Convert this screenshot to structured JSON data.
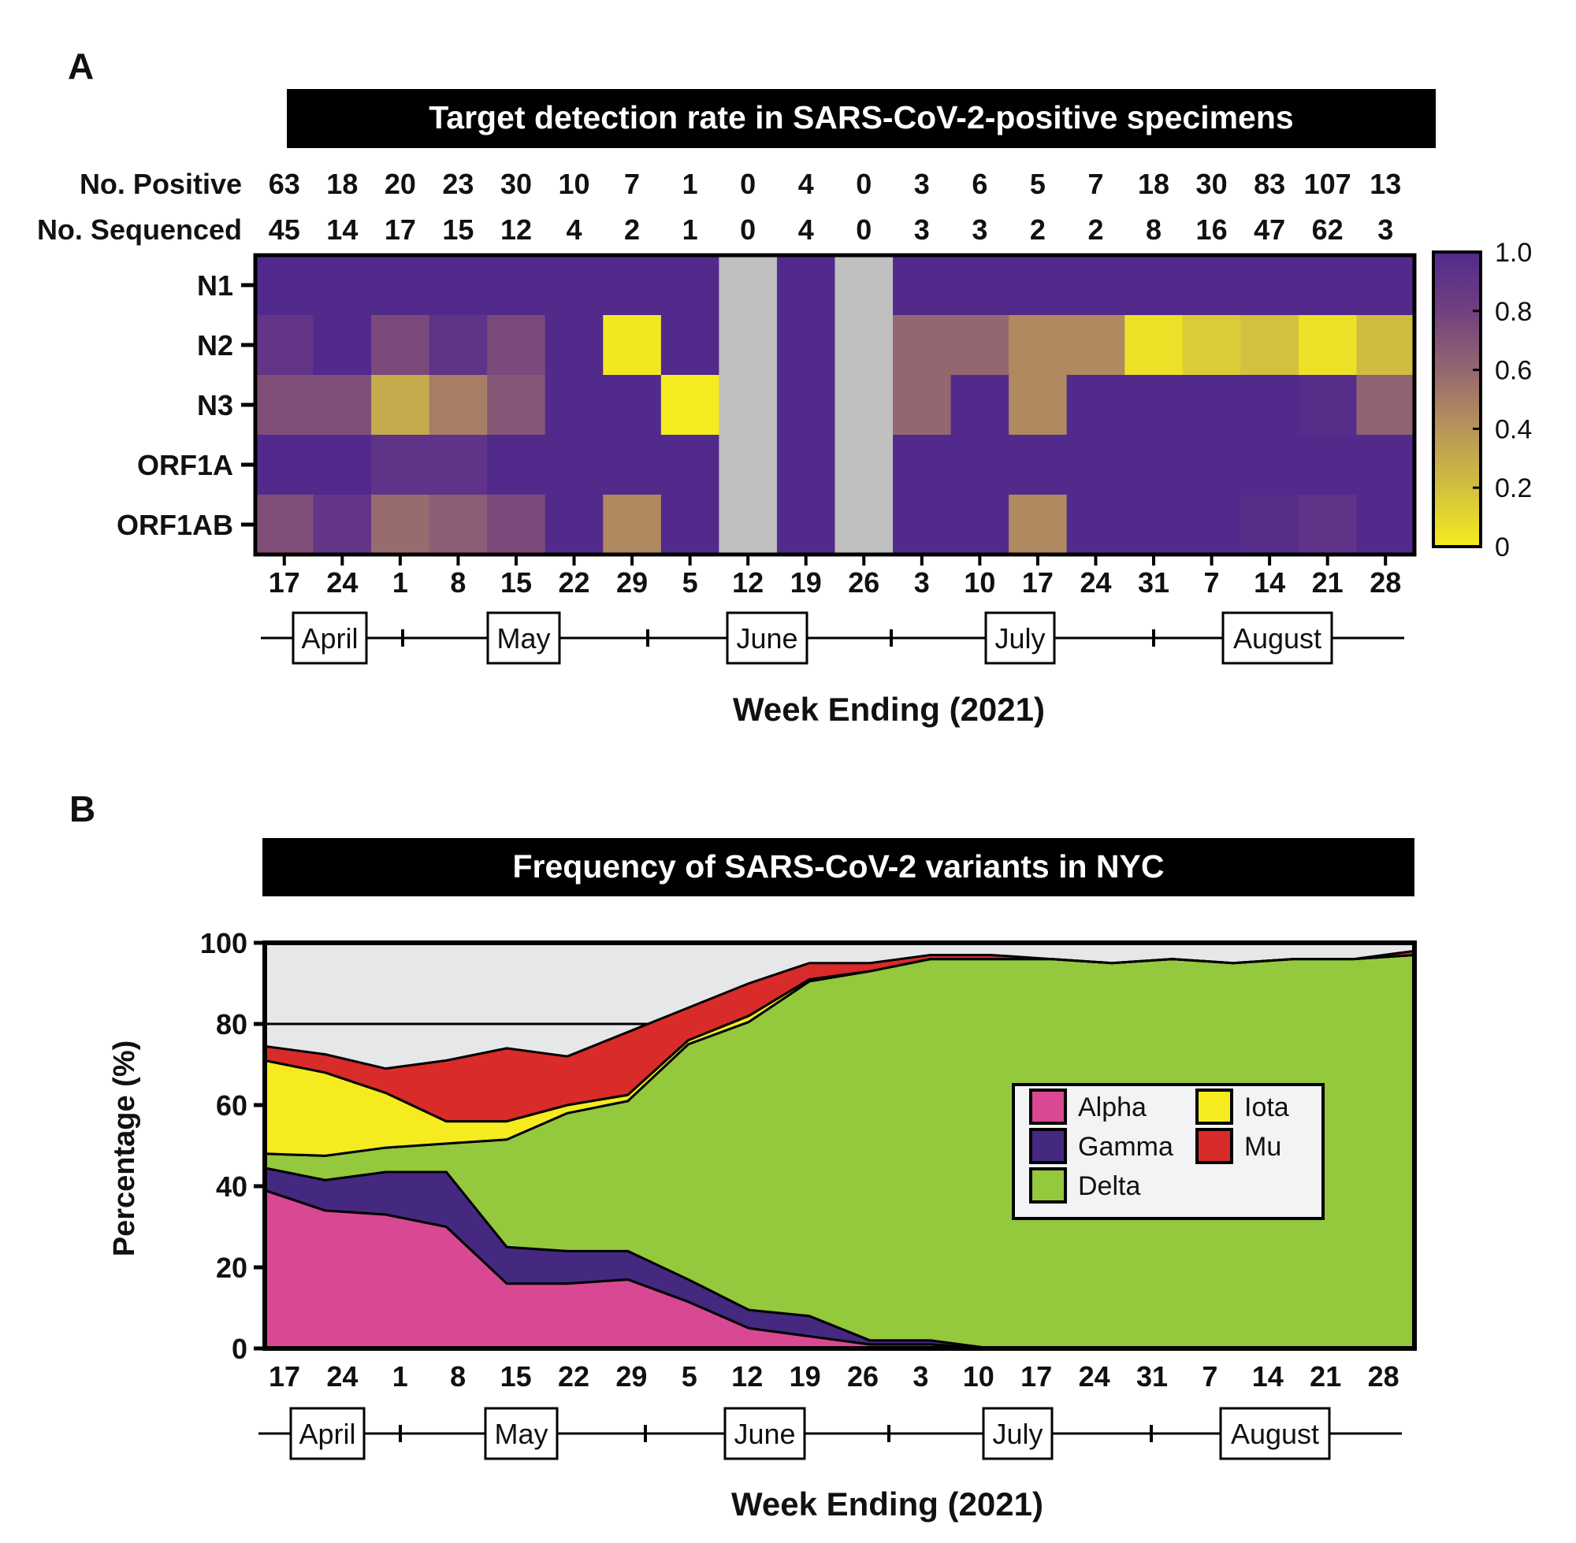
{
  "chart_data": [
    {
      "panel_label": "A",
      "type": "heatmap",
      "title": "Target detection rate in SARS-CoV-2-positive specimens",
      "xlabel": "Week Ending (2021)",
      "x_tick_labels": [
        "17",
        "24",
        "1",
        "8",
        "15",
        "22",
        "29",
        "5",
        "12",
        "19",
        "26",
        "3",
        "10",
        "17",
        "24",
        "31",
        "7",
        "14",
        "21",
        "28"
      ],
      "months": [
        "April",
        "May",
        "June",
        "July",
        "August"
      ],
      "count_rows": [
        {
          "label": "No. Positive",
          "values": [
            63,
            18,
            20,
            23,
            30,
            10,
            7,
            1,
            0,
            4,
            0,
            3,
            6,
            5,
            7,
            18,
            30,
            83,
            107,
            13
          ]
        },
        {
          "label": "No. Sequenced",
          "values": [
            45,
            14,
            17,
            15,
            12,
            4,
            2,
            1,
            0,
            4,
            0,
            3,
            3,
            2,
            2,
            8,
            16,
            47,
            62,
            3
          ]
        }
      ],
      "rows": [
        "N1",
        "N2",
        "N3",
        "ORF1A",
        "ORF1AB"
      ],
      "values": [
        [
          1,
          1,
          1,
          1,
          1,
          1,
          1,
          1,
          null,
          1,
          null,
          1,
          1,
          1,
          1,
          1,
          1,
          1,
          1,
          1
        ],
        [
          0.9,
          1,
          0.75,
          0.92,
          0.75,
          1,
          0.02,
          1,
          null,
          1,
          null,
          0.6,
          0.6,
          0.45,
          0.45,
          0.05,
          0.15,
          0.2,
          0.05,
          0.22
        ],
        [
          0.72,
          0.72,
          0.3,
          0.5,
          0.68,
          1,
          1,
          0.0,
          null,
          1,
          null,
          0.6,
          1,
          0.45,
          1,
          1,
          1,
          1,
          0.97,
          0.62
        ],
        [
          1,
          1,
          0.92,
          0.92,
          1,
          1,
          1,
          1,
          null,
          1,
          null,
          1,
          1,
          1,
          1,
          1,
          1,
          1,
          1,
          1
        ],
        [
          0.72,
          0.9,
          0.58,
          0.65,
          0.75,
          1,
          0.45,
          1,
          null,
          1,
          null,
          1,
          1,
          0.45,
          1,
          1,
          1,
          0.97,
          0.92,
          1
        ]
      ],
      "colorbar": {
        "range": [
          0,
          1
        ],
        "tick_labels": [
          "1.0",
          "0.8",
          "0.6",
          "0.4",
          "0.2",
          "0"
        ],
        "low_color": "#f5ec1f",
        "high_color": "#522a8c",
        "missing_color": "#c0c0c0"
      }
    },
    {
      "panel_label": "B",
      "type": "area",
      "stacked": true,
      "title": "Frequency of SARS-CoV-2 variants in NYC",
      "xlabel": "Week Ending (2021)",
      "ylabel": "Percentage (%)",
      "ylim": [
        0,
        100
      ],
      "y_tick_labels": [
        "100",
        "80",
        "60",
        "40",
        "20",
        "0"
      ],
      "x_tick_labels": [
        "17",
        "24",
        "1",
        "8",
        "15",
        "22",
        "29",
        "5",
        "12",
        "19",
        "26",
        "3",
        "10",
        "17",
        "24",
        "31",
        "7",
        "14",
        "21",
        "28"
      ],
      "months": [
        "April",
        "May",
        "June",
        "July",
        "August"
      ],
      "background_color": "#e6e7e9",
      "legend_position": "center-right",
      "series": [
        {
          "name": "Alpha",
          "color": "#d94892",
          "values": [
            39,
            34,
            33,
            30,
            16,
            16,
            17,
            11.5,
            5,
            3,
            1,
            1,
            0,
            0,
            0,
            0,
            0,
            0,
            0,
            0
          ]
        },
        {
          "name": "Gamma",
          "color": "#45287f",
          "values": [
            5.5,
            7.5,
            10.5,
            13.5,
            9,
            8,
            7,
            5.5,
            4.5,
            5,
            1,
            1,
            0,
            0,
            0,
            0,
            0,
            0,
            0,
            0
          ]
        },
        {
          "name": "Delta",
          "color": "#94c83d",
          "values": [
            3.5,
            6,
            6,
            7,
            26.5,
            34,
            37,
            58,
            71,
            82.5,
            91,
            94,
            96,
            96,
            95,
            96,
            95,
            96,
            96,
            97
          ]
        },
        {
          "name": "Iota",
          "color": "#f5eb1f",
          "values": [
            23,
            20.5,
            13.5,
            5.5,
            4.5,
            2,
            1.5,
            1,
            1.5,
            0.5,
            0,
            0,
            0,
            0,
            0,
            0,
            0,
            0,
            0,
            0
          ]
        },
        {
          "name": "Mu",
          "color": "#d82b2a",
          "values": [
            3.5,
            4.5,
            6,
            15,
            18,
            12,
            15.5,
            8,
            8,
            4,
            2,
            1,
            1,
            0,
            0,
            0,
            0,
            0,
            0,
            1
          ]
        }
      ],
      "legend_order": [
        "Alpha",
        "Iota",
        "Gamma",
        "Mu",
        "Delta"
      ]
    }
  ]
}
